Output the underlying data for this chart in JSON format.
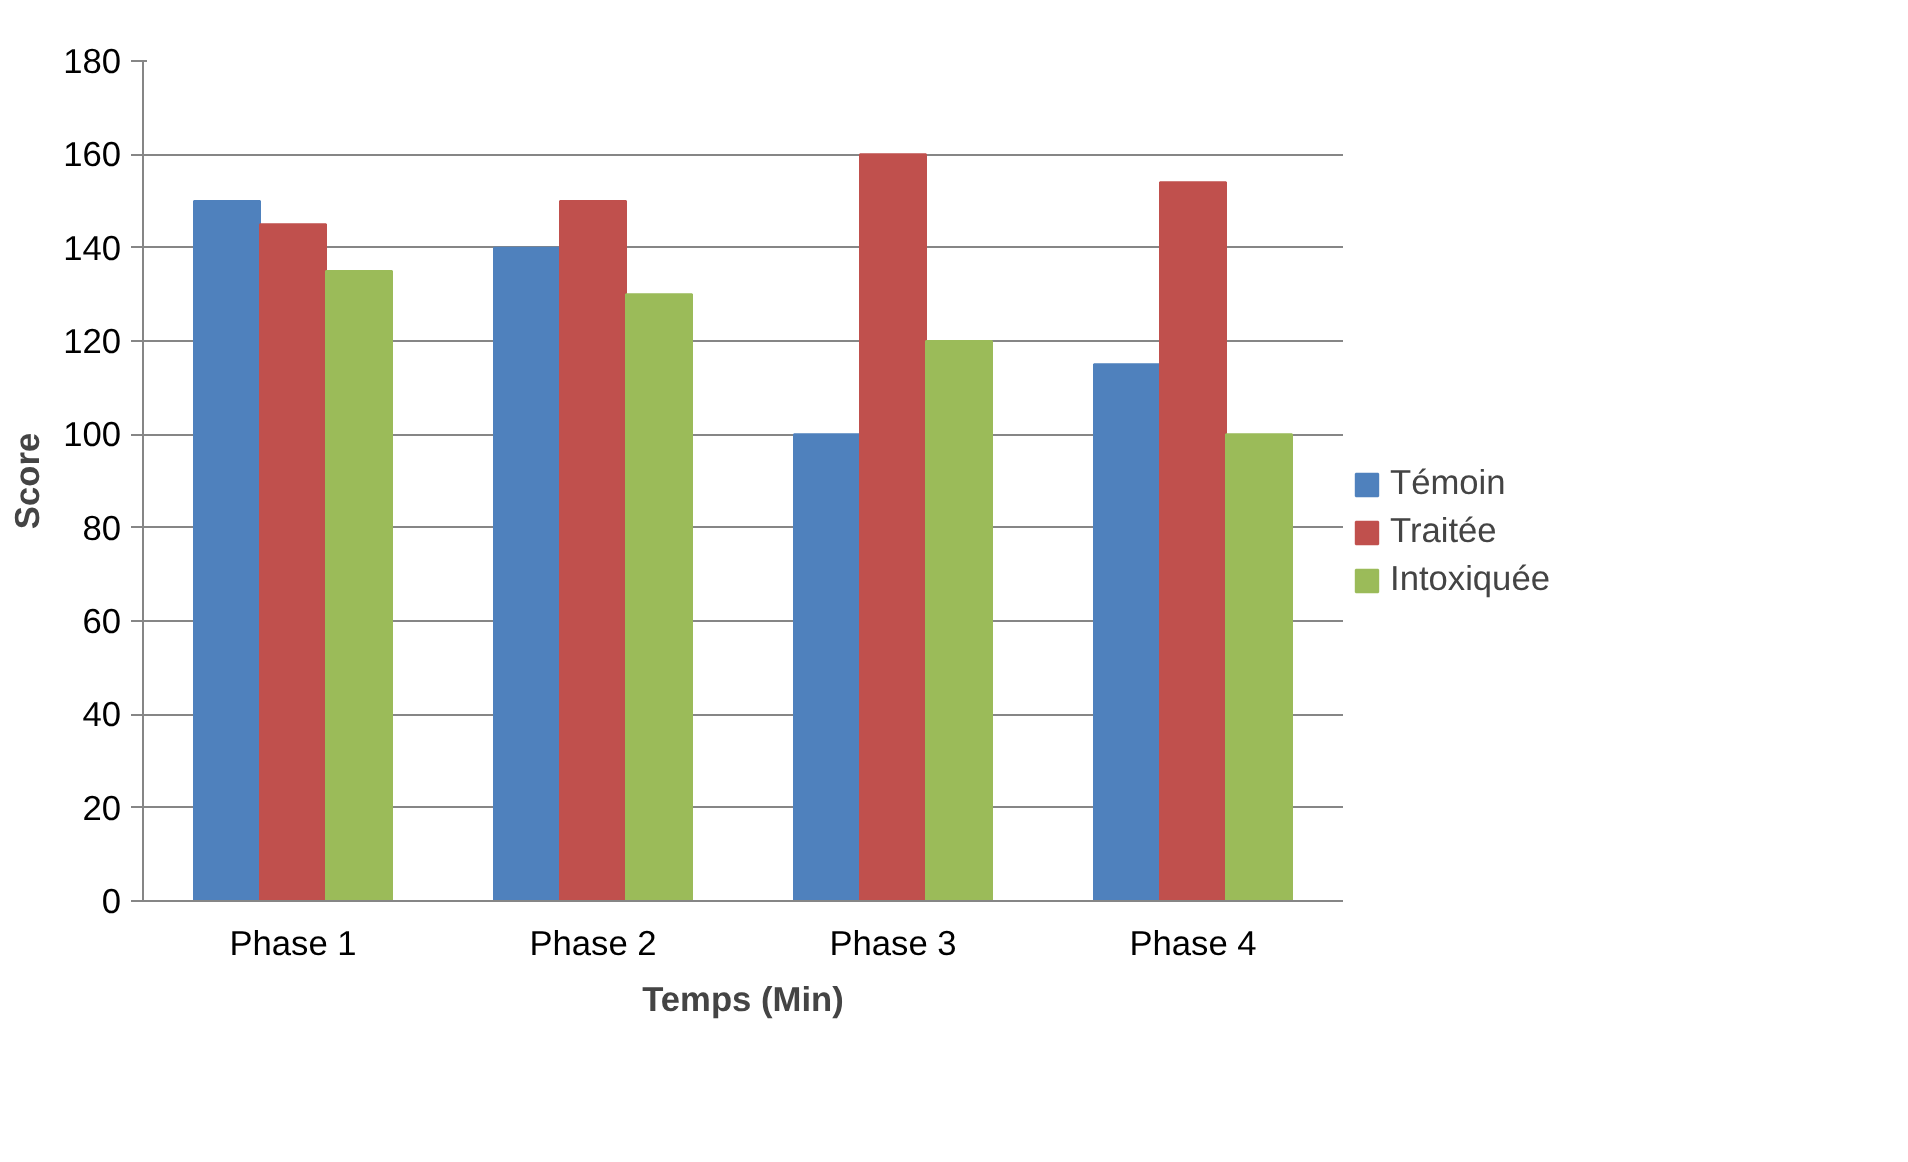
{
  "chart_data": {
    "type": "bar",
    "xlabel": "Temps (Min)",
    "ylabel": "Score",
    "categories": [
      "Phase 1",
      "Phase 2",
      "Phase 3",
      "Phase 4"
    ],
    "series": [
      {
        "name": "Témoin",
        "color": "#4f81bd",
        "values": [
          150,
          140,
          100,
          115
        ]
      },
      {
        "name": "Traitée",
        "color": "#c0504d",
        "values": [
          145,
          150,
          160,
          154
        ]
      },
      {
        "name": "Intoxiquée",
        "color": "#9bbb59",
        "values": [
          135,
          130,
          120,
          100
        ]
      }
    ],
    "ylim": [
      0,
      180
    ],
    "yticks": [
      0,
      20,
      40,
      60,
      80,
      100,
      120,
      140,
      160,
      180
    ],
    "grid": "y",
    "legend": "right"
  }
}
